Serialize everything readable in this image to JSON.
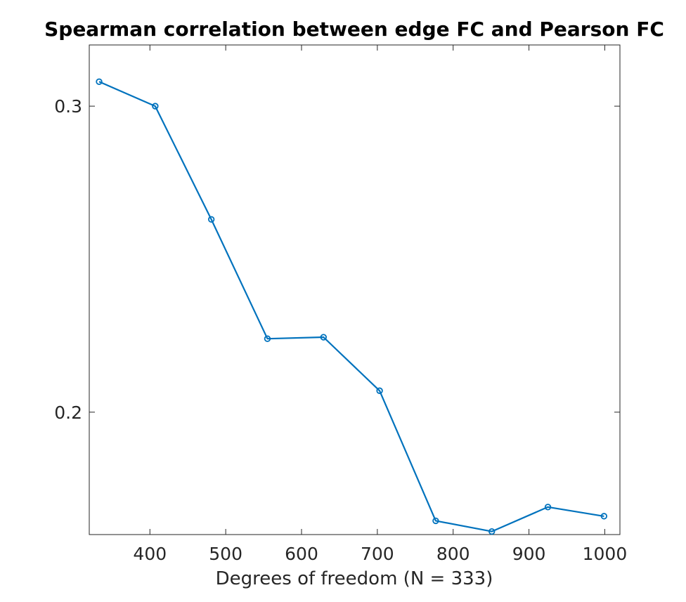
{
  "chart_data": {
    "type": "line",
    "title": "Spearman correlation between edge FC and Pearson FC",
    "xlabel": "Degrees of freedom (N = 333)",
    "ylabel": "",
    "xlim": [
      320,
      1020
    ],
    "ylim": [
      0.16,
      0.32
    ],
    "xticks": [
      400,
      500,
      600,
      700,
      800,
      900,
      1000
    ],
    "xtick_labels": [
      "400",
      "500",
      "600",
      "700",
      "800",
      "900",
      "1000"
    ],
    "yticks": [
      0.2,
      0.3
    ],
    "ytick_labels": [
      "0.2",
      "0.3"
    ],
    "grid": false,
    "legend": "none",
    "series": [
      {
        "color": "#0072BD",
        "marker": "o",
        "x": [
          333,
          407,
          481,
          555,
          629,
          703,
          777,
          851,
          925,
          999
        ],
        "y": [
          0.308,
          0.3,
          0.263,
          0.224,
          0.2245,
          0.207,
          0.1645,
          0.161,
          0.169,
          0.166
        ]
      }
    ]
  }
}
